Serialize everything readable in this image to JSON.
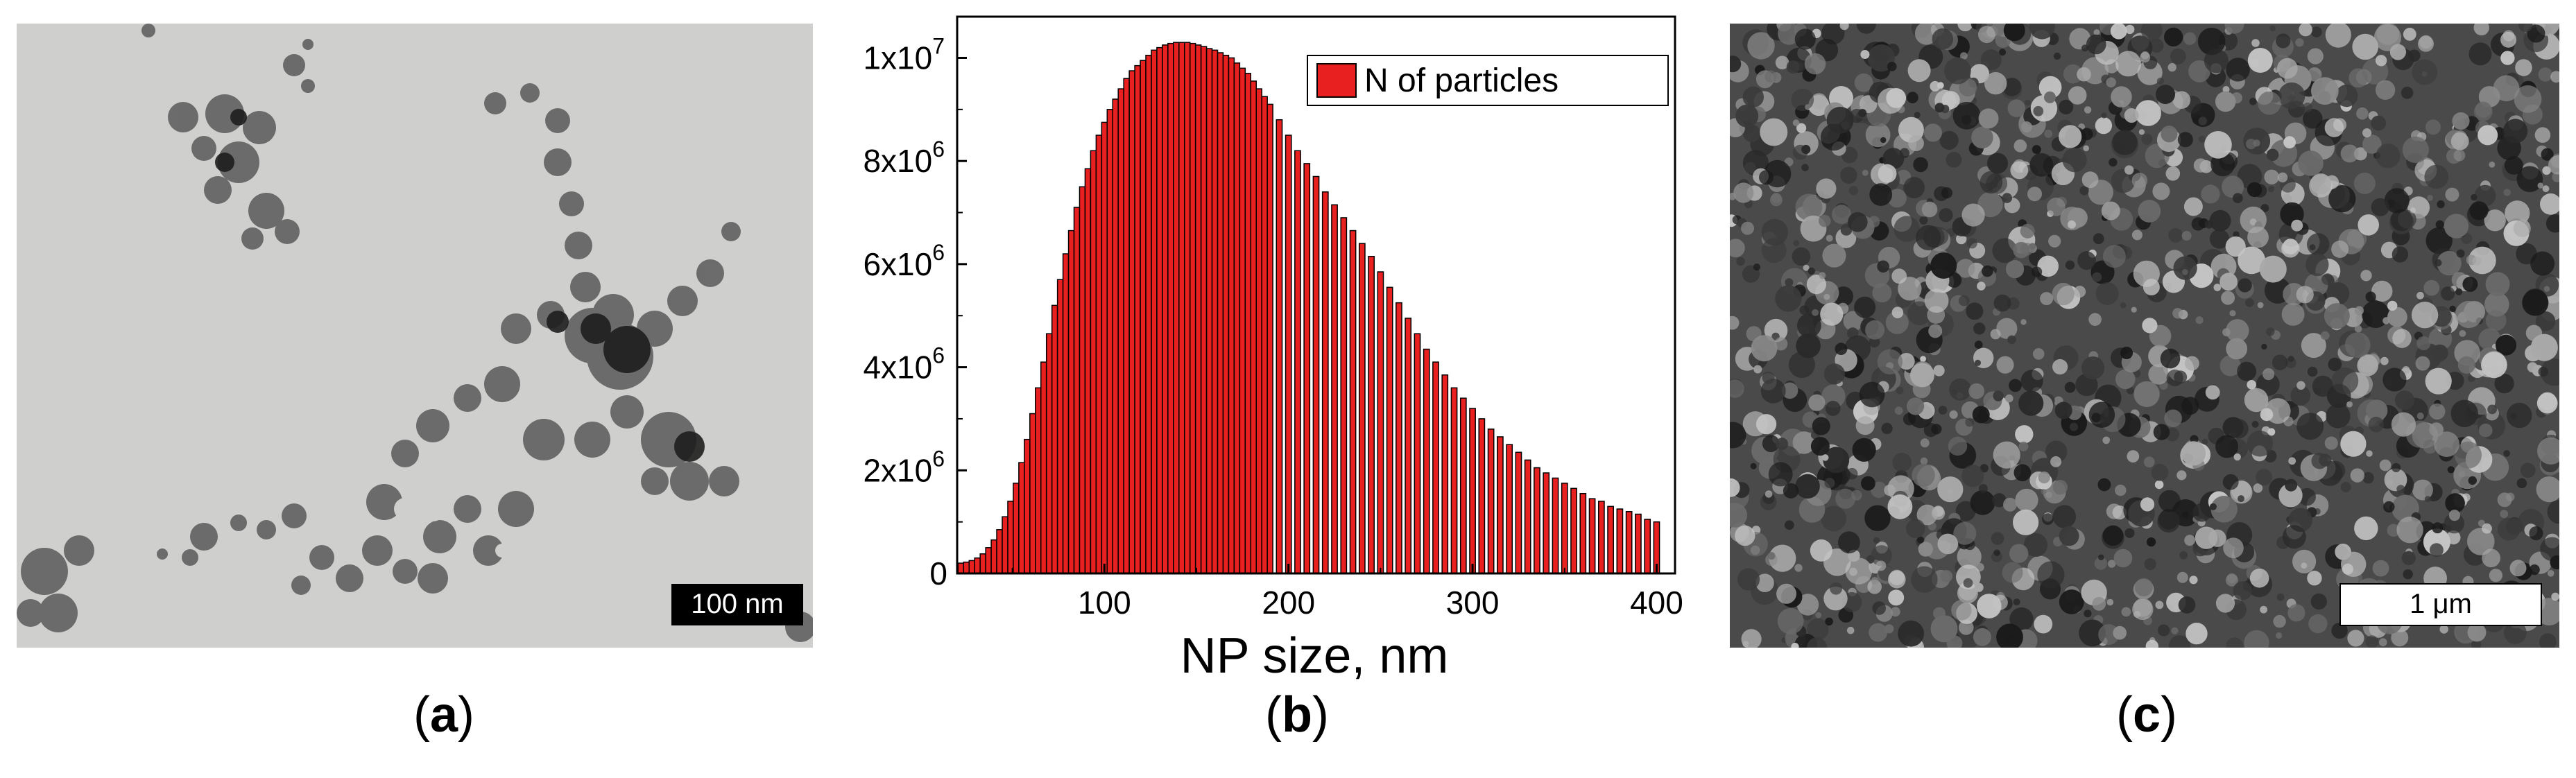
{
  "panels": {
    "a": {
      "caption_open": "(",
      "caption_letter": "a",
      "caption_close": ")",
      "scale_bar": "100 nm",
      "image_kind": "TEM micrograph of agglomerated nanoparticles"
    },
    "b": {
      "caption_open": "(",
      "caption_letter": "b",
      "caption_close": ")"
    },
    "c": {
      "caption_open": "(",
      "caption_letter": "c",
      "caption_close": ")",
      "scale_bar": "1 μm",
      "image_kind": "SEM micrograph of porous nanoparticle film"
    }
  },
  "colors": {
    "bar_fill": "#e8201f",
    "bar_edge": "#000000",
    "tem_background": "#cfd0ce",
    "sem_background": "#4a4a4a"
  },
  "chart_data": {
    "type": "bar",
    "title": "",
    "xlabel": "NP size, nm",
    "ylabel": "",
    "xlim": [
      20,
      410
    ],
    "ylim": [
      0,
      10800000
    ],
    "x_ticks": [
      100,
      200,
      300,
      400
    ],
    "x_tick_labels": [
      "100",
      "200",
      "300",
      "400"
    ],
    "y_ticks": [
      0,
      2000000,
      4000000,
      6000000,
      8000000,
      10000000
    ],
    "y_tick_labels": [
      {
        "base": "0",
        "exp": ""
      },
      {
        "base": "2x10",
        "exp": "6"
      },
      {
        "base": "4x10",
        "exp": "6"
      },
      {
        "base": "6x10",
        "exp": "6"
      },
      {
        "base": "8x10",
        "exp": "6"
      },
      {
        "base": "1x10",
        "exp": "7"
      }
    ],
    "legend": {
      "label": "N of particles",
      "position": "top-right"
    },
    "series": [
      {
        "name": "N of particles",
        "x": [
          22,
          25,
          28,
          31,
          34,
          37,
          40,
          43,
          46,
          49,
          52,
          55,
          58,
          61,
          64,
          67,
          70,
          73,
          76,
          79,
          82,
          85,
          88,
          91,
          94,
          97,
          100,
          103,
          106,
          109,
          112,
          115,
          118,
          121,
          124,
          127,
          130,
          133,
          136,
          139,
          142,
          145,
          148,
          151,
          154,
          157,
          160,
          163,
          166,
          169,
          172,
          175,
          178,
          181,
          184,
          187,
          190,
          195,
          200,
          205,
          210,
          215,
          220,
          225,
          230,
          235,
          240,
          245,
          250,
          255,
          260,
          265,
          270,
          275,
          280,
          285,
          290,
          295,
          300,
          305,
          310,
          315,
          320,
          325,
          330,
          335,
          340,
          345,
          350,
          355,
          360,
          365,
          370,
          375,
          380,
          385,
          390,
          395,
          400
        ],
        "values": [
          200000,
          220000,
          250000,
          300000,
          380000,
          500000,
          650000,
          850000,
          1100000,
          1400000,
          1750000,
          2150000,
          2600000,
          3100000,
          3600000,
          4100000,
          4650000,
          5200000,
          5700000,
          6200000,
          6650000,
          7100000,
          7500000,
          7850000,
          8200000,
          8500000,
          8750000,
          9000000,
          9200000,
          9400000,
          9600000,
          9750000,
          9850000,
          9950000,
          10050000,
          10150000,
          10200000,
          10250000,
          10280000,
          10300000,
          10300000,
          10300000,
          10280000,
          10250000,
          10220000,
          10180000,
          10150000,
          10100000,
          10050000,
          10000000,
          9900000,
          9800000,
          9700000,
          9550000,
          9400000,
          9250000,
          9100000,
          8800000,
          8500000,
          8200000,
          7950000,
          7700000,
          7400000,
          7150000,
          6900000,
          6650000,
          6400000,
          6150000,
          5850000,
          5550000,
          5250000,
          4950000,
          4650000,
          4350000,
          4100000,
          3850000,
          3600000,
          3400000,
          3200000,
          3000000,
          2800000,
          2650000,
          2500000,
          2350000,
          2200000,
          2050000,
          1950000,
          1850000,
          1750000,
          1650000,
          1550000,
          1450000,
          1400000,
          1300000,
          1250000,
          1200000,
          1150000,
          1050000,
          1000000
        ]
      }
    ]
  }
}
